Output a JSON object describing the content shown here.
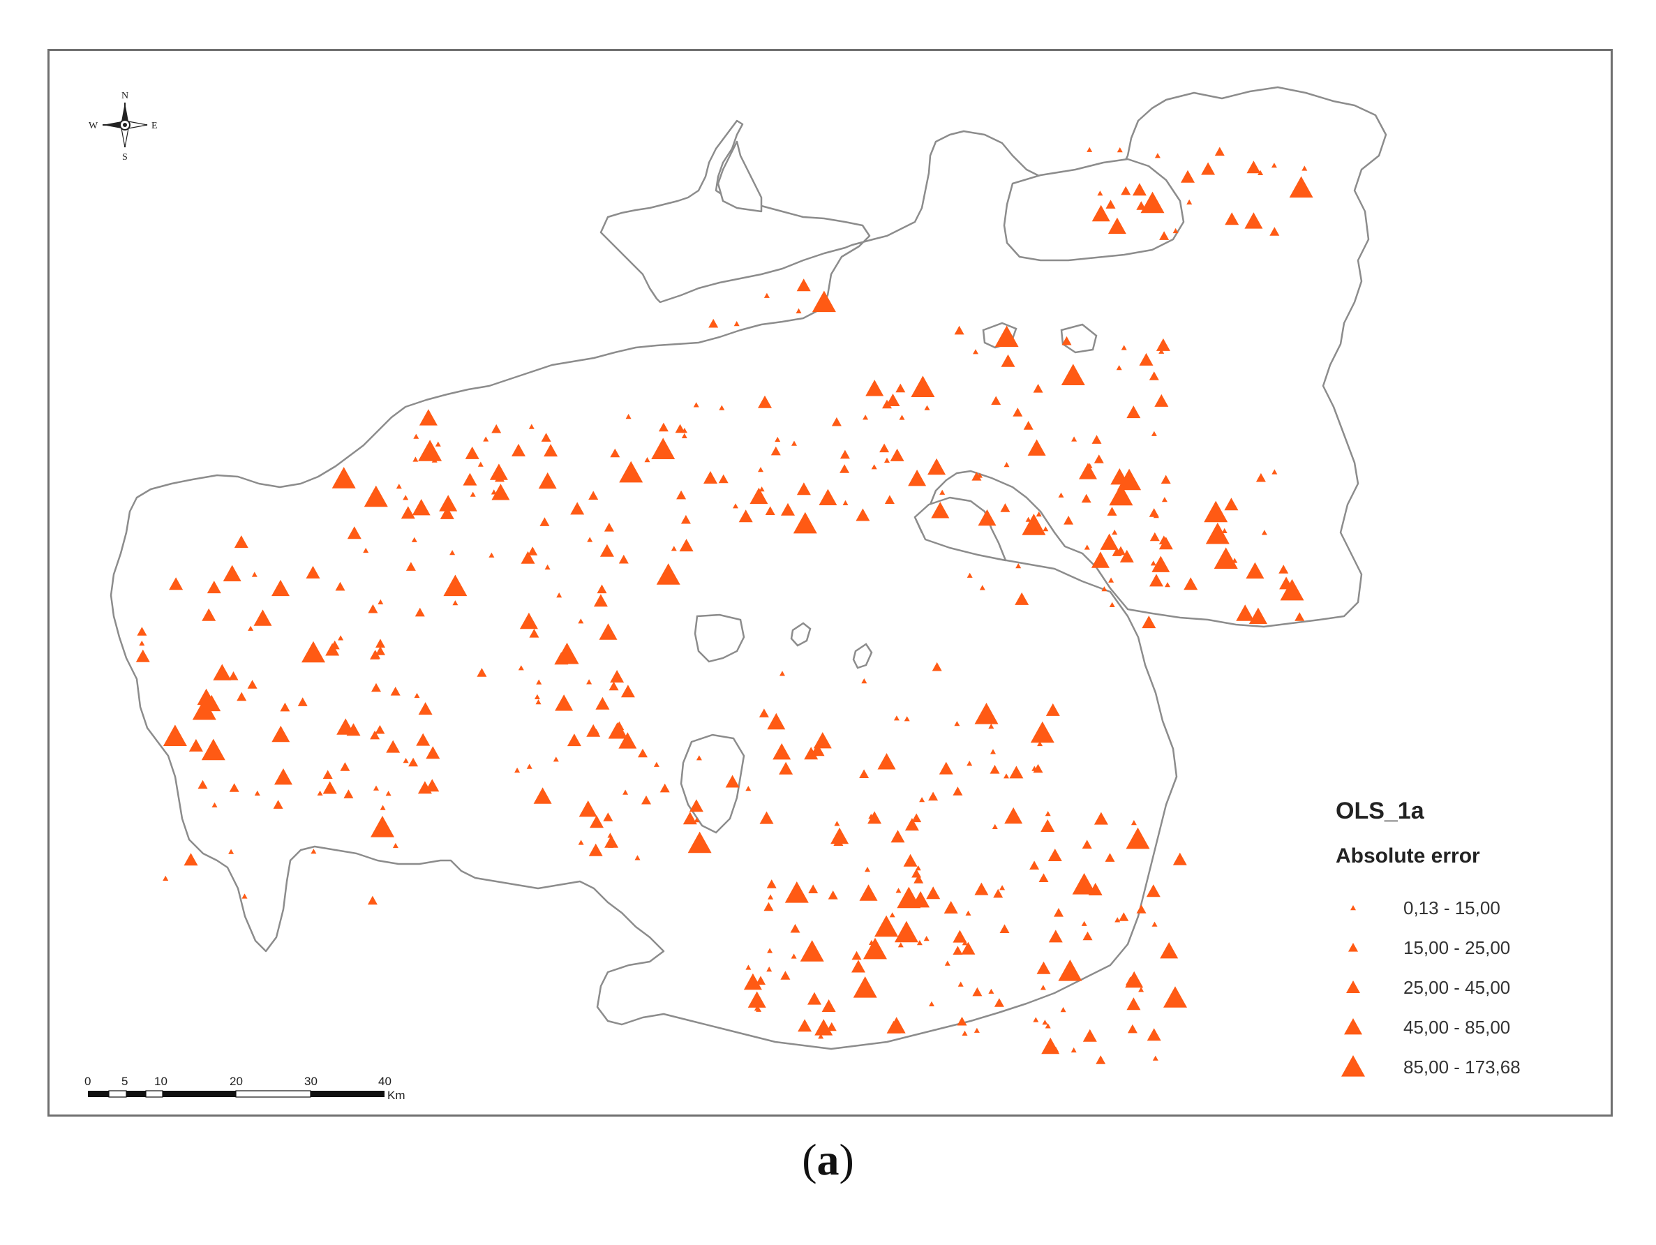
{
  "figure_label": {
    "open": "(",
    "letter": "a",
    "close": ")"
  },
  "compass": {
    "n": "N",
    "s": "S",
    "e": "E",
    "w": "W"
  },
  "scale_bar": {
    "ticks": [
      "0",
      "5",
      "10",
      "20",
      "30",
      "40"
    ],
    "unit": "Km"
  },
  "legend": {
    "title": "OLS_1a",
    "subtitle": "Absolute error",
    "classes": [
      {
        "label": "0,13 - 15,00",
        "class_index": 0
      },
      {
        "label": "15,00 - 25,00",
        "class_index": 1
      },
      {
        "label": "25,00 - 45,00",
        "class_index": 2
      },
      {
        "label": "45,00 - 85,00",
        "class_index": 3
      },
      {
        "label": "85,00 - 173,68",
        "class_index": 4
      }
    ]
  },
  "colors": {
    "marker": "#ff5a14",
    "outline": "#8c8c8c",
    "frame": "#6f6f6f"
  }
}
